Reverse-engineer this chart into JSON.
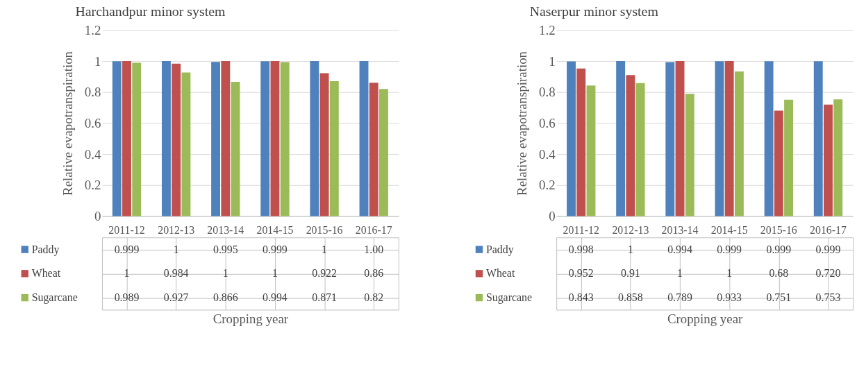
{
  "chart_data": [
    {
      "type": "bar",
      "title": "Harchandpur minor system",
      "xlabel": "Cropping year",
      "ylabel": "Relative evapotranspiration",
      "categories": [
        "2011-12",
        "2012-13",
        "2013-14",
        "2014-15",
        "2015-16",
        "2016-17"
      ],
      "ylim": [
        0,
        1.2
      ],
      "yticks": [
        0,
        0.2,
        0.4,
        0.6,
        0.8,
        1,
        1.2
      ],
      "grid": "y",
      "legend": "bottom",
      "series": [
        {
          "name": "Paddy",
          "color": "#4f81bd",
          "values": [
            0.999,
            1,
            0.995,
            0.999,
            1,
            1.0
          ],
          "value_labels": [
            "0.999",
            "1",
            "0.995",
            "0.999",
            "1",
            "1.00"
          ]
        },
        {
          "name": "Wheat",
          "color": "#c0504d",
          "values": [
            1,
            0.984,
            1,
            1,
            0.922,
            0.86
          ],
          "value_labels": [
            "1",
            "0.984",
            "1",
            "1",
            "0.922",
            "0.86"
          ]
        },
        {
          "name": "Sugarcane",
          "color": "#9bbb59",
          "values": [
            0.989,
            0.927,
            0.866,
            0.994,
            0.871,
            0.82
          ],
          "value_labels": [
            "0.989",
            "0.927",
            "0.866",
            "0.994",
            "0.871",
            "0.82"
          ]
        }
      ]
    },
    {
      "type": "bar",
      "title": "Naserpur minor system",
      "xlabel": "Cropping year",
      "ylabel": "Relative evapotranspiration",
      "categories": [
        "2011-12",
        "2012-13",
        "2013-14",
        "2014-15",
        "2015-16",
        "2016-17"
      ],
      "ylim": [
        0,
        1.2
      ],
      "yticks": [
        0,
        0.2,
        0.4,
        0.6,
        0.8,
        1,
        1.2
      ],
      "grid": "y",
      "legend": "bottom",
      "series": [
        {
          "name": "Paddy",
          "color": "#4f81bd",
          "values": [
            0.998,
            1,
            0.994,
            0.999,
            0.999,
            0.999
          ],
          "value_labels": [
            "0.998",
            "1",
            "0.994",
            "0.999",
            "0.999",
            "0.999"
          ]
        },
        {
          "name": "Wheat",
          "color": "#c0504d",
          "values": [
            0.952,
            0.91,
            1,
            1,
            0.68,
            0.72
          ],
          "value_labels": [
            "0.952",
            "0.91",
            "1",
            "1",
            "0.68",
            "0.720"
          ]
        },
        {
          "name": "Sugarcane",
          "color": "#9bbb59",
          "values": [
            0.843,
            0.858,
            0.789,
            0.933,
            0.751,
            0.753
          ],
          "value_labels": [
            "0.843",
            "0.858",
            "0.789",
            "0.933",
            "0.751",
            "0.753"
          ]
        }
      ]
    }
  ]
}
